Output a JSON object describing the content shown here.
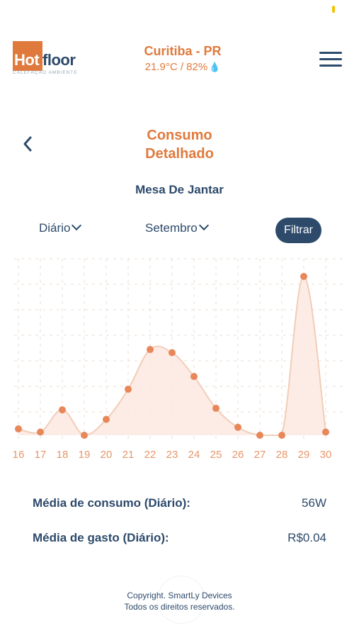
{
  "header": {
    "logo_hot": "Hot",
    "logo_floor": "floor",
    "logo_tagline": "CALEFAÇÃO AMBIENTE",
    "city": "Curitiba - PR",
    "weather": "21.9°C / 82%",
    "weather_icon": "droplet-icon",
    "menu_icon": "hamburger-menu-icon"
  },
  "page": {
    "title_line1": "Consumo",
    "title_line2": "Detalhado",
    "back_icon": "chevron-left-icon",
    "room": "Mesa De Jantar"
  },
  "filters": {
    "period": "Diário",
    "month": "Setembro",
    "button": "Filtrar"
  },
  "chart_data": {
    "type": "area",
    "x": [
      "16",
      "17",
      "18",
      "19",
      "20",
      "21",
      "22",
      "23",
      "24",
      "25",
      "26",
      "27",
      "28",
      "29",
      "30"
    ],
    "values": [
      4,
      2,
      16,
      0,
      10,
      29,
      54,
      52,
      37,
      17,
      5,
      0,
      0,
      100,
      2
    ],
    "title": "",
    "xlabel": "",
    "ylabel": "",
    "ylim": [
      0,
      100
    ],
    "grid": true,
    "colors": {
      "line": "#f2cdb8",
      "fill": "#fbe9e0",
      "point": "#e8875a",
      "tick": "#e8966a",
      "grid": "#e9dcd3"
    }
  },
  "stats": {
    "avg_consumption_label": "Média de consumo (Diário):",
    "avg_consumption_value": "56W",
    "avg_cost_label": "Média de gasto (Diário):",
    "avg_cost_value": "R$0.04"
  },
  "footer": {
    "line1": "Copyright. SmartLy Devices",
    "line2": "Todos os direitos reservados."
  },
  "colors": {
    "accent": "#e07a3c",
    "primary": "#2d4a6b",
    "status": "#f2c200"
  }
}
